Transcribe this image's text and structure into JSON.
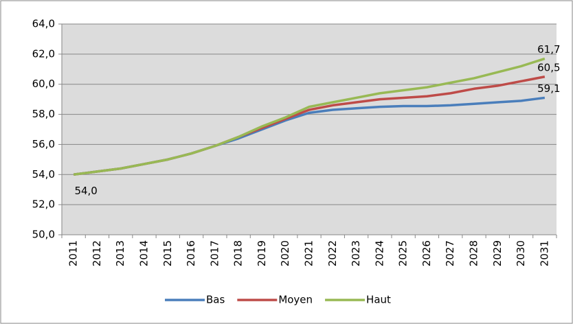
{
  "chart_data": {
    "type": "line",
    "categories": [
      "2011",
      "2012",
      "2013",
      "2014",
      "2015",
      "2016",
      "2017",
      "2018",
      "2019",
      "2020",
      "2021",
      "2022",
      "2023",
      "2024",
      "2025",
      "2026",
      "2027",
      "2028",
      "2029",
      "2030",
      "2031"
    ],
    "series": [
      {
        "name": "Bas",
        "color": "#4a7ebb",
        "values": [
          54.0,
          54.2,
          54.4,
          54.7,
          55.0,
          55.4,
          55.9,
          56.4,
          57.0,
          57.6,
          58.1,
          58.3,
          58.4,
          58.5,
          58.55,
          58.55,
          58.6,
          58.7,
          58.8,
          58.9,
          59.1
        ],
        "value_labels": [
          "54,0",
          null,
          null,
          null,
          null,
          null,
          null,
          null,
          null,
          null,
          null,
          null,
          null,
          null,
          null,
          null,
          null,
          null,
          null,
          null,
          "59,1"
        ]
      },
      {
        "name": "Moyen",
        "color": "#be4b48",
        "values": [
          54.0,
          54.2,
          54.4,
          54.7,
          55.0,
          55.4,
          55.9,
          56.5,
          57.1,
          57.7,
          58.3,
          58.6,
          58.8,
          59.0,
          59.1,
          59.2,
          59.4,
          59.7,
          59.9,
          60.2,
          60.5
        ],
        "value_labels": [
          null,
          null,
          null,
          null,
          null,
          null,
          null,
          null,
          null,
          null,
          null,
          null,
          null,
          null,
          null,
          null,
          null,
          null,
          null,
          null,
          "60,5"
        ]
      },
      {
        "name": "Haut",
        "color": "#98b954",
        "values": [
          54.0,
          54.2,
          54.4,
          54.7,
          55.0,
          55.4,
          55.9,
          56.5,
          57.2,
          57.8,
          58.5,
          58.8,
          59.1,
          59.4,
          59.6,
          59.8,
          60.1,
          60.4,
          60.8,
          61.2,
          61.7
        ],
        "value_labels": [
          null,
          null,
          null,
          null,
          null,
          null,
          null,
          null,
          null,
          null,
          null,
          null,
          null,
          null,
          null,
          null,
          null,
          null,
          null,
          null,
          "61,7"
        ]
      }
    ],
    "ylim": [
      50,
      64
    ],
    "yticks": [
      {
        "value": 50,
        "label": "50,0"
      },
      {
        "value": 52,
        "label": "52,0"
      },
      {
        "value": 54,
        "label": "54,0"
      },
      {
        "value": 56,
        "label": "56,0"
      },
      {
        "value": 58,
        "label": "58,0"
      },
      {
        "value": 60,
        "label": "60,0"
      },
      {
        "value": 62,
        "label": "62,0"
      },
      {
        "value": 64,
        "label": "64,0"
      }
    ],
    "grid": true,
    "legend": "bottom"
  }
}
